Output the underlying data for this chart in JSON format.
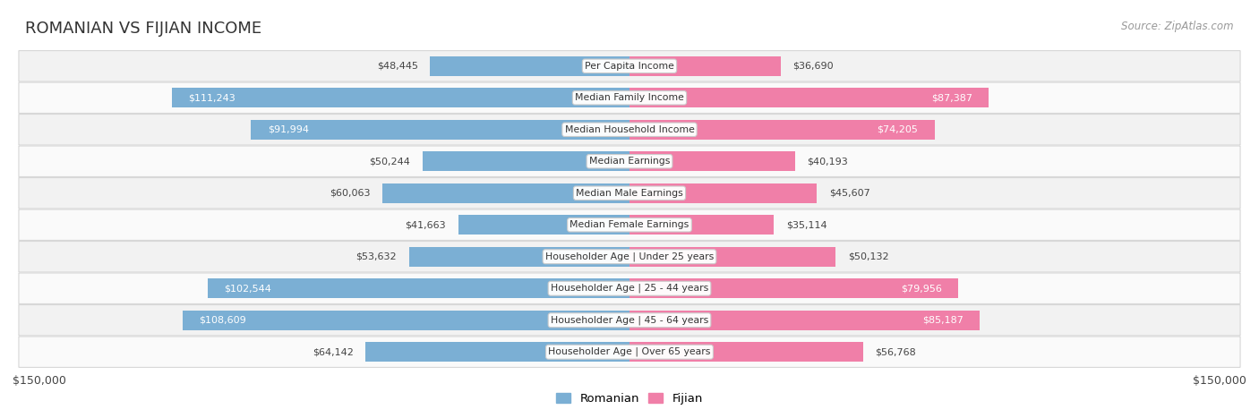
{
  "title": "ROMANIAN VS FIJIAN INCOME",
  "source": "Source: ZipAtlas.com",
  "categories": [
    "Per Capita Income",
    "Median Family Income",
    "Median Household Income",
    "Median Earnings",
    "Median Male Earnings",
    "Median Female Earnings",
    "Householder Age | Under 25 years",
    "Householder Age | 25 - 44 years",
    "Householder Age | 45 - 64 years",
    "Householder Age | Over 65 years"
  ],
  "romanian": [
    48445,
    111243,
    91994,
    50244,
    60063,
    41663,
    53632,
    102544,
    108609,
    64142
  ],
  "fijian": [
    36690,
    87387,
    74205,
    40193,
    45607,
    35114,
    50132,
    79956,
    85187,
    56768
  ],
  "romanian_labels": [
    "$48,445",
    "$111,243",
    "$91,994",
    "$50,244",
    "$60,063",
    "$41,663",
    "$53,632",
    "$102,544",
    "$108,609",
    "$64,142"
  ],
  "fijian_labels": [
    "$36,690",
    "$87,387",
    "$74,205",
    "$40,193",
    "$45,607",
    "$35,114",
    "$50,132",
    "$79,956",
    "$85,187",
    "$56,768"
  ],
  "romanian_color": "#7bafd4",
  "fijian_color": "#f07fa8",
  "max_val": 150000,
  "legend_romanian": "Romanian",
  "legend_fijian": "Fijian",
  "xlabel_left": "$150,000",
  "xlabel_right": "$150,000",
  "row_bg_odd": "#f2f2f2",
  "row_bg_even": "#fafafa"
}
